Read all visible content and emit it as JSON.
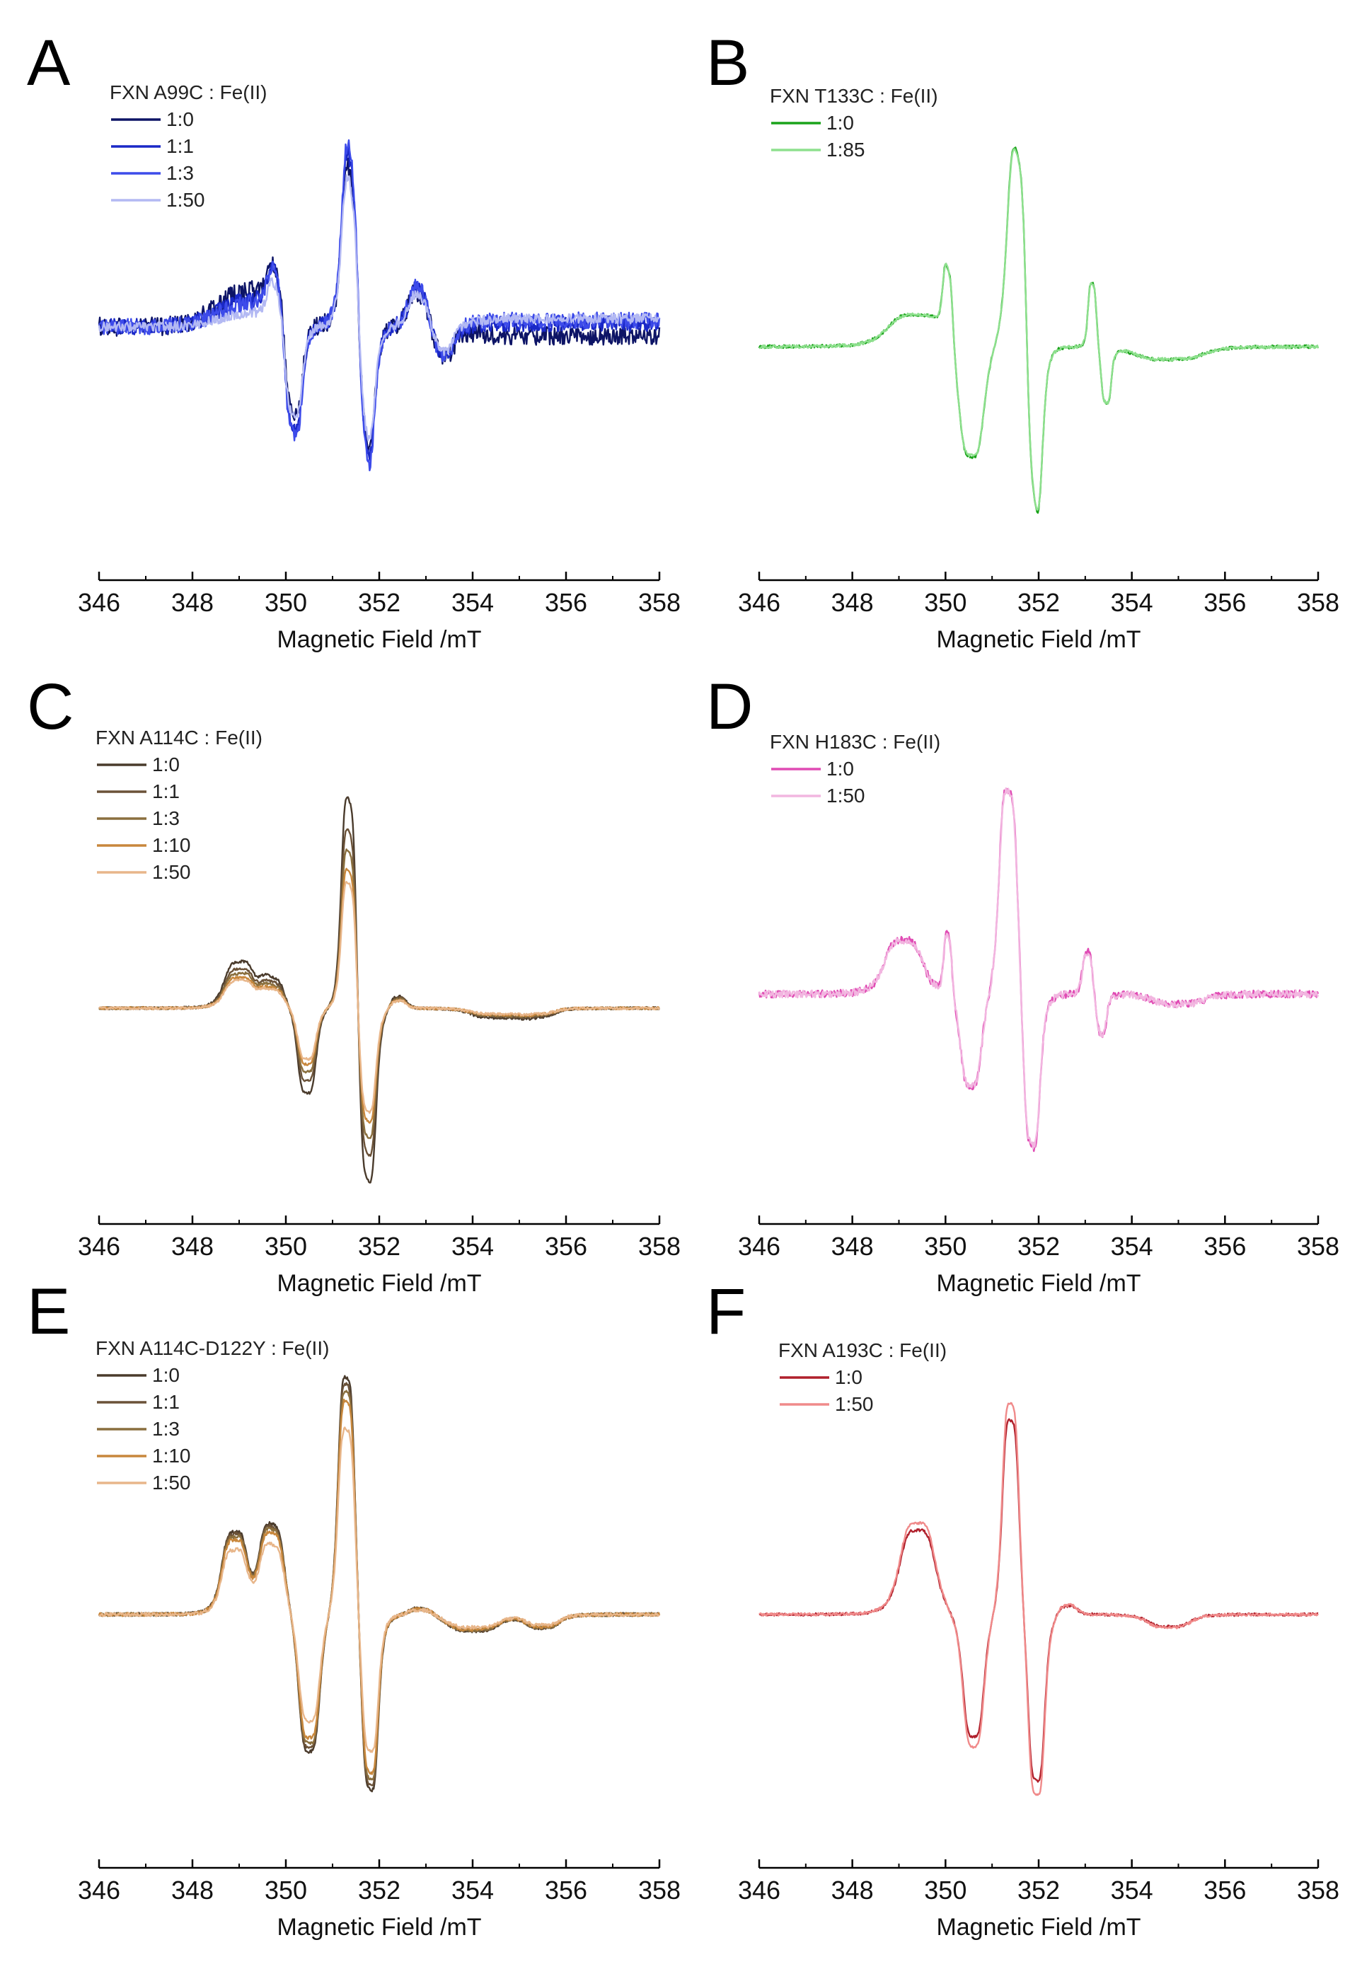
{
  "chart_data": [
    {
      "panel": "A",
      "type": "line",
      "title": "FXN A99C : Fe(II)",
      "xlabel": "Magnetic Field /mT",
      "ylabel": "",
      "xlim": [
        346,
        358
      ],
      "xticks": [
        346,
        348,
        350,
        352,
        354,
        356,
        358
      ],
      "ylim": [
        -1.2,
        1.35
      ],
      "legend_placement": "top-left",
      "peaks": [
        [
          349.8,
          0.32,
          0.22
        ],
        [
          350.15,
          -0.78,
          0.22
        ],
        [
          351.4,
          1.25,
          0.22
        ],
        [
          351.7,
          -1.05,
          0.22
        ],
        [
          352.9,
          0.28,
          0.3
        ],
        [
          353.3,
          -0.25,
          0.3
        ]
      ],
      "series": [
        {
          "name": "1:0",
          "color": "#0d1466",
          "scale": 0.88,
          "bump": 0.22,
          "tail": -0.06,
          "noise": 0.06
        },
        {
          "name": "1:1",
          "color": "#1a28c7",
          "scale": 0.95,
          "bump": 0.16,
          "tail": 0.02,
          "noise": 0.05
        },
        {
          "name": "1:3",
          "color": "#3d4bea",
          "scale": 1.0,
          "bump": 0.14,
          "tail": 0.04,
          "noise": 0.05
        },
        {
          "name": "1:50",
          "color": "#b3b9f3",
          "scale": 0.82,
          "bump": 0.08,
          "tail": 0.05,
          "noise": 0.03
        }
      ]
    },
    {
      "panel": "B",
      "type": "line",
      "title": "FXN T133C : Fe(II)",
      "xlabel": "Magnetic Field /mT",
      "ylabel": "",
      "xlim": [
        346,
        358
      ],
      "xticks": [
        346,
        348,
        350,
        352,
        354,
        356,
        358
      ],
      "ylim": [
        -1.2,
        1.35
      ],
      "legend_placement": "top-left",
      "peaks": [
        [
          349.4,
          0.2,
          0.7
        ],
        [
          350.05,
          0.45,
          0.12
        ],
        [
          350.55,
          -0.72,
          0.3
        ],
        [
          351.55,
          1.3,
          0.25
        ],
        [
          351.9,
          -1.2,
          0.2
        ],
        [
          353.15,
          0.4,
          0.1
        ],
        [
          353.45,
          -0.35,
          0.12
        ],
        [
          354.8,
          -0.08,
          0.8
        ]
      ],
      "series": [
        {
          "name": "1:0",
          "color": "#1aa31a",
          "scale": 1.0,
          "bump": 0.0,
          "tail": 0.0,
          "noise": 0.01
        },
        {
          "name": "1:85",
          "color": "#8ee08e",
          "scale": 0.99,
          "bump": 0.0,
          "tail": 0.0,
          "noise": 0.01
        }
      ]
    },
    {
      "panel": "C",
      "type": "line",
      "title": "FXN A114C : Fe(II)",
      "xlabel": "Magnetic Field /mT",
      "ylabel": "",
      "xlim": [
        346,
        358
      ],
      "xticks": [
        346,
        348,
        350,
        352,
        354,
        356,
        358
      ],
      "ylim": [
        -1.2,
        1.35
      ],
      "legend_placement": "top-left",
      "peaks": [
        [
          349.0,
          0.28,
          0.35
        ],
        [
          349.7,
          0.18,
          0.3
        ],
        [
          350.45,
          -0.55,
          0.22
        ],
        [
          351.35,
          1.35,
          0.18
        ],
        [
          351.75,
          -1.15,
          0.2
        ],
        [
          352.4,
          0.08,
          0.2
        ],
        [
          354.5,
          -0.06,
          0.6
        ],
        [
          355.4,
          -0.05,
          0.4
        ]
      ],
      "series": [
        {
          "name": "1:0",
          "color": "#4a3b2c",
          "scale": 1.0,
          "bump": 0.0,
          "tail": 0.0,
          "noise": 0.008
        },
        {
          "name": "1:1",
          "color": "#6b5238",
          "scale": 0.85,
          "bump": 0.0,
          "tail": 0.0,
          "noise": 0.008
        },
        {
          "name": "1:3",
          "color": "#8a6f3e",
          "scale": 0.75,
          "bump": 0.0,
          "tail": 0.0,
          "noise": 0.008
        },
        {
          "name": "1:10",
          "color": "#c8873c",
          "scale": 0.66,
          "bump": 0.0,
          "tail": 0.0,
          "noise": 0.008
        },
        {
          "name": "1:50",
          "color": "#e8b68a",
          "scale": 0.6,
          "bump": 0.0,
          "tail": 0.0,
          "noise": 0.008
        }
      ]
    },
    {
      "panel": "D",
      "type": "line",
      "title": "FXN H183C : Fe(II)",
      "xlabel": "Magnetic Field /mT",
      "ylabel": "",
      "xlim": [
        346,
        358
      ],
      "xticks": [
        346,
        348,
        350,
        352,
        354,
        356,
        358
      ],
      "ylim": [
        -1.2,
        1.35
      ],
      "legend_placement": "top-left",
      "peaks": [
        [
          349.1,
          0.35,
          0.45
        ],
        [
          350.05,
          0.4,
          0.1
        ],
        [
          350.55,
          -0.65,
          0.25
        ],
        [
          351.35,
          1.35,
          0.22
        ],
        [
          351.85,
          -1.1,
          0.2
        ],
        [
          353.05,
          0.28,
          0.12
        ],
        [
          353.35,
          -0.28,
          0.12
        ],
        [
          355.0,
          -0.07,
          0.6
        ]
      ],
      "series": [
        {
          "name": "1:0",
          "color": "#e04bb4",
          "scale": 1.0,
          "bump": 0.0,
          "tail": 0.0,
          "noise": 0.025
        },
        {
          "name": "1:50",
          "color": "#f2b6e0",
          "scale": 0.99,
          "bump": 0.0,
          "tail": 0.0,
          "noise": 0.025
        }
      ]
    },
    {
      "panel": "E",
      "type": "line",
      "title": "FXN A114C-D122Y : Fe(II)",
      "xlabel": "Magnetic Field /mT",
      "ylabel": "",
      "xlim": [
        346,
        358
      ],
      "xticks": [
        346,
        348,
        350,
        352,
        354,
        356,
        358
      ],
      "ylim": [
        -1.2,
        1.35
      ],
      "legend_placement": "top-left",
      "peaks": [
        [
          348.9,
          0.45,
          0.3
        ],
        [
          349.7,
          0.5,
          0.3
        ],
        [
          350.5,
          -0.85,
          0.25
        ],
        [
          351.3,
          1.35,
          0.2
        ],
        [
          351.8,
          -1.1,
          0.2
        ],
        [
          352.9,
          0.04,
          0.3
        ],
        [
          354.0,
          -0.1,
          0.6
        ],
        [
          355.5,
          -0.08,
          0.4
        ]
      ],
      "series": [
        {
          "name": "1:0",
          "color": "#4a3b2c",
          "scale": 1.0,
          "bump": 0.0,
          "tail": 0.0,
          "noise": 0.01
        },
        {
          "name": "1:1",
          "color": "#6b5238",
          "scale": 0.97,
          "bump": 0.0,
          "tail": 0.0,
          "noise": 0.01
        },
        {
          "name": "1:3",
          "color": "#8a6f3e",
          "scale": 0.94,
          "bump": 0.0,
          "tail": 0.0,
          "noise": 0.01
        },
        {
          "name": "1:10",
          "color": "#c8873c",
          "scale": 0.9,
          "bump": 0.0,
          "tail": 0.0,
          "noise": 0.01
        },
        {
          "name": "1:50",
          "color": "#e8b68a",
          "scale": 0.78,
          "bump": 0.0,
          "tail": 0.0,
          "noise": 0.01
        }
      ]
    },
    {
      "panel": "F",
      "type": "line",
      "title": "FXN A193C : Fe(II)",
      "xlabel": "Magnetic Field /mT",
      "ylabel": "",
      "xlim": [
        346,
        358
      ],
      "xticks": [
        346,
        348,
        350,
        352,
        354,
        356,
        358
      ],
      "ylim": [
        -1.2,
        1.35
      ],
      "legend_placement": "top-left",
      "peaks": [
        [
          349.4,
          0.52,
          0.42
        ],
        [
          350.6,
          -0.82,
          0.25
        ],
        [
          351.4,
          1.22,
          0.2
        ],
        [
          351.95,
          -1.12,
          0.2
        ],
        [
          352.6,
          0.06,
          0.25
        ],
        [
          354.8,
          -0.08,
          0.5
        ]
      ],
      "series": [
        {
          "name": "1:0",
          "color": "#b0202c",
          "scale": 0.92,
          "bump": 0.0,
          "tail": 0.0,
          "noise": 0.008
        },
        {
          "name": "1:50",
          "color": "#f08a8a",
          "scale": 1.0,
          "bump": 0.0,
          "tail": 0.0,
          "noise": 0.008
        }
      ]
    }
  ]
}
